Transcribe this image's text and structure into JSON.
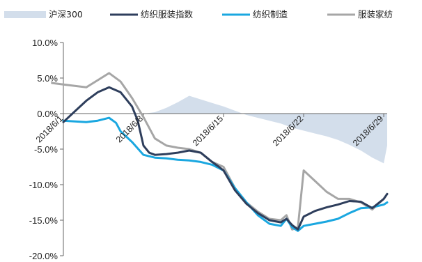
{
  "chart_data": {
    "type": "line",
    "title": "",
    "xlabel": "",
    "ylabel": "",
    "ylim": [
      -0.2,
      0.1
    ],
    "y_tick_values": [
      0.1,
      0.05,
      0.0,
      -0.05,
      -0.1,
      -0.15,
      -0.2
    ],
    "y_tick_labels": [
      "10.0%",
      "5.0%",
      "0.0%",
      "-5.0%",
      "-10.0%",
      "-15.0%",
      "-20.0%"
    ],
    "x_tick_labels": [
      "2018/6/1",
      "2018/6/8",
      "2018/6/15",
      "2018/6/22",
      "2018/6/29"
    ],
    "x_tick_values": [
      1,
      8,
      15,
      22,
      29
    ],
    "xlim": [
      1,
      29.3
    ],
    "grid": false,
    "legend_position": "top",
    "series": [
      {
        "name": "沪深300",
        "kind": "area",
        "color": "#d3deeb",
        "x": [
          1,
          2,
          4,
          6,
          8,
          9,
          10,
          11,
          12,
          13,
          14,
          15,
          16,
          17,
          18,
          19,
          20,
          21,
          22,
          23,
          24,
          25,
          26,
          27,
          28,
          29,
          29.3
        ],
        "y": [
          0.0,
          0.0,
          0.0,
          0.0,
          0.0,
          0.002,
          0.008,
          0.016,
          0.025,
          0.02,
          0.015,
          0.01,
          0.004,
          -0.002,
          -0.006,
          -0.01,
          -0.014,
          -0.02,
          -0.024,
          -0.028,
          -0.032,
          -0.037,
          -0.044,
          -0.052,
          -0.062,
          -0.07,
          -0.045
        ]
      },
      {
        "name": "纺织服装指数",
        "kind": "line",
        "color": "#2e3e5c",
        "x": [
          1,
          2,
          3,
          4,
          5,
          6,
          7,
          7.5,
          8,
          8.5,
          9,
          10,
          11,
          12,
          13,
          14,
          14.6,
          15,
          16,
          17,
          18,
          19,
          20,
          20.5,
          21,
          21.5,
          22,
          23,
          24,
          25,
          26,
          27,
          28,
          29,
          29.3
        ],
        "y": [
          -0.012,
          0.003,
          0.018,
          0.03,
          0.037,
          0.03,
          0.01,
          -0.01,
          -0.045,
          -0.055,
          -0.058,
          -0.057,
          -0.055,
          -0.052,
          -0.055,
          -0.068,
          -0.075,
          -0.08,
          -0.108,
          -0.127,
          -0.14,
          -0.15,
          -0.153,
          -0.148,
          -0.157,
          -0.163,
          -0.145,
          -0.137,
          -0.132,
          -0.128,
          -0.123,
          -0.124,
          -0.133,
          -0.12,
          -0.113
        ]
      },
      {
        "name": "纺织制造",
        "kind": "line",
        "color": "#1aa7e0",
        "x": [
          1,
          2,
          3,
          4,
          5,
          5.6,
          6,
          7,
          8,
          9,
          10,
          11,
          12,
          13,
          14,
          15,
          16,
          17,
          18,
          19,
          20,
          20.5,
          21,
          21.5,
          22,
          23,
          24,
          25,
          26,
          27,
          28,
          29,
          29.3
        ],
        "y": [
          -0.01,
          -0.011,
          -0.012,
          -0.01,
          -0.006,
          -0.013,
          -0.025,
          -0.04,
          -0.058,
          -0.062,
          -0.063,
          -0.065,
          -0.066,
          -0.068,
          -0.072,
          -0.08,
          -0.105,
          -0.125,
          -0.143,
          -0.155,
          -0.158,
          -0.148,
          -0.16,
          -0.165,
          -0.158,
          -0.155,
          -0.152,
          -0.148,
          -0.14,
          -0.133,
          -0.132,
          -0.128,
          -0.125
        ]
      },
      {
        "name": "服装家纺",
        "kind": "line",
        "color": "#a6a6a6",
        "x": [
          0,
          1,
          2,
          3,
          4,
          5,
          6,
          7,
          8,
          9,
          10,
          11,
          12,
          13,
          14,
          15,
          16,
          17,
          18,
          19,
          20,
          20.5,
          21,
          21.5,
          22,
          23,
          24,
          25,
          26,
          27,
          28,
          29,
          29.3
        ],
        "y": [
          0.043,
          0.041,
          0.039,
          0.037,
          0.047,
          0.057,
          0.045,
          0.022,
          -0.005,
          -0.035,
          -0.045,
          -0.048,
          -0.05,
          -0.055,
          -0.068,
          -0.075,
          -0.105,
          -0.125,
          -0.138,
          -0.148,
          -0.15,
          -0.143,
          -0.163,
          -0.16,
          -0.08,
          -0.095,
          -0.11,
          -0.12,
          -0.12,
          -0.125,
          -0.135,
          -0.12,
          -0.113
        ]
      }
    ]
  }
}
